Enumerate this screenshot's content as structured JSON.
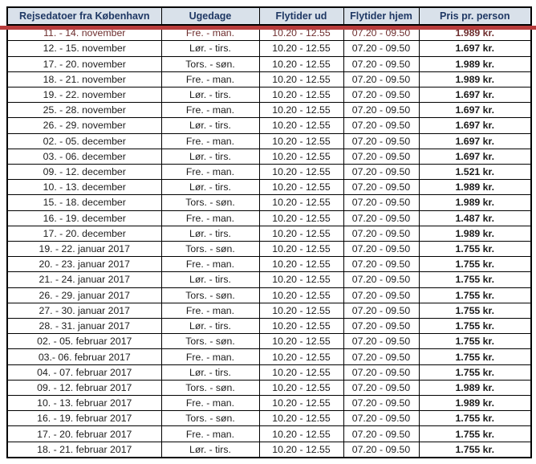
{
  "table": {
    "columns": [
      "Rejsedatoer fra København",
      "Ugedage",
      "Flytider ud",
      "Flytider hjem",
      "Pris pr. person"
    ],
    "rows": [
      {
        "date": "11. - 14. november",
        "weekdays": "Fre. - man.",
        "flight_out": "10.20 - 12.55",
        "flight_home": "07.20 - 09.50",
        "price": "1.989 kr.",
        "struck": true
      },
      {
        "date": "12. - 15. november",
        "weekdays": "Lør. - tirs.",
        "flight_out": "10.20 - 12.55",
        "flight_home": "07.20 - 09.50",
        "price": "1.697 kr.",
        "struck": false
      },
      {
        "date": "17. - 20. november",
        "weekdays": "Tors. - søn.",
        "flight_out": "10.20 - 12.55",
        "flight_home": "07.20 - 09.50",
        "price": "1.989 kr.",
        "struck": false
      },
      {
        "date": "18. - 21. november",
        "weekdays": "Fre. - man.",
        "flight_out": "10.20 - 12.55",
        "flight_home": "07.20 - 09.50",
        "price": "1.989 kr.",
        "struck": false
      },
      {
        "date": "19. - 22. november",
        "weekdays": "Lør. - tirs.",
        "flight_out": "10.20 - 12.55",
        "flight_home": "07.20 - 09.50",
        "price": "1.697 kr.",
        "struck": false
      },
      {
        "date": "25. - 28. november",
        "weekdays": "Fre. - man.",
        "flight_out": "10.20 - 12.55",
        "flight_home": "07.20 - 09.50",
        "price": "1.697 kr.",
        "struck": false
      },
      {
        "date": "26. - 29. november",
        "weekdays": "Lør. - tirs.",
        "flight_out": "10.20 - 12.55",
        "flight_home": "07.20 - 09.50",
        "price": "1.697 kr.",
        "struck": false
      },
      {
        "date": "02. - 05. december",
        "weekdays": "Fre. - man.",
        "flight_out": "10.20 - 12.55",
        "flight_home": "07.20 - 09.50",
        "price": "1.697 kr.",
        "struck": false
      },
      {
        "date": "03. - 06. december",
        "weekdays": "Lør. - tirs.",
        "flight_out": "10.20 - 12.55",
        "flight_home": "07.20 - 09.50",
        "price": "1.697 kr.",
        "struck": false
      },
      {
        "date": "09. - 12. december",
        "weekdays": "Fre. - man.",
        "flight_out": "10.20 - 12.55",
        "flight_home": "07.20 - 09.50",
        "price": "1.521 kr.",
        "struck": false
      },
      {
        "date": "10. - 13. december",
        "weekdays": "Lør. - tirs.",
        "flight_out": "10.20 - 12.55",
        "flight_home": "07.20 - 09.50",
        "price": "1.989 kr.",
        "struck": false
      },
      {
        "date": "15. - 18. december",
        "weekdays": "Tors. - søn.",
        "flight_out": "10.20 - 12.55",
        "flight_home": "07.20 - 09.50",
        "price": "1.989 kr.",
        "struck": false
      },
      {
        "date": "16. - 19. december",
        "weekdays": "Fre. - man.",
        "flight_out": "10.20 - 12.55",
        "flight_home": "07.20 - 09.50",
        "price": "1.487 kr.",
        "struck": false
      },
      {
        "date": "17. - 20. december",
        "weekdays": "Lør. - tirs.",
        "flight_out": "10.20 - 12.55",
        "flight_home": "07.20 - 09.50",
        "price": "1.989 kr.",
        "struck": false
      },
      {
        "date": "19. - 22. januar 2017",
        "weekdays": "Tors. - søn.",
        "flight_out": "10.20 - 12.55",
        "flight_home": "07.20 - 09.50",
        "price": "1.755 kr.",
        "struck": false
      },
      {
        "date": "20. - 23. januar 2017",
        "weekdays": "Fre. - man.",
        "flight_out": "10.20 - 12.55",
        "flight_home": "07.20 - 09.50",
        "price": "1.755 kr.",
        "struck": false
      },
      {
        "date": "21. - 24. januar 2017",
        "weekdays": "Lør. - tirs.",
        "flight_out": "10.20 - 12.55",
        "flight_home": "07.20 - 09.50",
        "price": "1.755 kr.",
        "struck": false
      },
      {
        "date": "26. - 29. januar 2017",
        "weekdays": "Tors. - søn.",
        "flight_out": "10.20 - 12.55",
        "flight_home": "07.20 - 09.50",
        "price": "1.755 kr.",
        "struck": false
      },
      {
        "date": "27. - 30. januar 2017",
        "weekdays": "Fre. - man.",
        "flight_out": "10.20 - 12.55",
        "flight_home": "07.20 - 09.50",
        "price": "1.755 kr.",
        "struck": false
      },
      {
        "date": "28. - 31. januar 2017",
        "weekdays": "Lør. - tirs.",
        "flight_out": "10.20 - 12.55",
        "flight_home": "07.20 - 09.50",
        "price": "1.755 kr.",
        "struck": false
      },
      {
        "date": "02. - 05. februar 2017",
        "weekdays": "Tors. - søn.",
        "flight_out": "10.20 - 12.55",
        "flight_home": "07.20 - 09.50",
        "price": "1.755 kr.",
        "struck": false
      },
      {
        "date": "03.- 06. februar 2017",
        "weekdays": "Fre. - man.",
        "flight_out": "10.20 - 12.55",
        "flight_home": "07.20 - 09.50",
        "price": "1.755 kr.",
        "struck": false
      },
      {
        "date": "04. - 07. februar 2017",
        "weekdays": "Lør. - tirs.",
        "flight_out": "10.20 - 12.55",
        "flight_home": "07.20 - 09.50",
        "price": "1.755 kr.",
        "struck": false
      },
      {
        "date": "09. - 12. februar 2017",
        "weekdays": "Tors. - søn.",
        "flight_out": "10.20 - 12.55",
        "flight_home": "07.20 - 09.50",
        "price": "1.989 kr.",
        "struck": false
      },
      {
        "date": "10. - 13. februar 2017",
        "weekdays": "Fre. - man.",
        "flight_out": "10.20 - 12.55",
        "flight_home": "07.20 - 09.50",
        "price": "1.989 kr.",
        "struck": false
      },
      {
        "date": "16. - 19. februar 2017",
        "weekdays": "Tors. - søn.",
        "flight_out": "10.20 - 12.55",
        "flight_home": "07.20 - 09.50",
        "price": "1.755 kr.",
        "struck": false
      },
      {
        "date": "17. - 20. februar 2017",
        "weekdays": "Fre. - man.",
        "flight_out": "10.20 - 12.55",
        "flight_home": "07.20 - 09.50",
        "price": "1.755 kr.",
        "struck": false
      },
      {
        "date": "18. - 21. februar 2017",
        "weekdays": "Lør. - tirs.",
        "flight_out": "10.20 - 12.55",
        "flight_home": "07.20 - 09.50",
        "price": "1.755 kr.",
        "struck": false
      }
    ]
  },
  "colors": {
    "header_bg": "#d9e1ea",
    "header_text": "#1f3864",
    "body_text": "#1c1c1c",
    "border": "#000000",
    "strike_line": "#b83c3c",
    "struck_text": "#6d2d2d"
  }
}
